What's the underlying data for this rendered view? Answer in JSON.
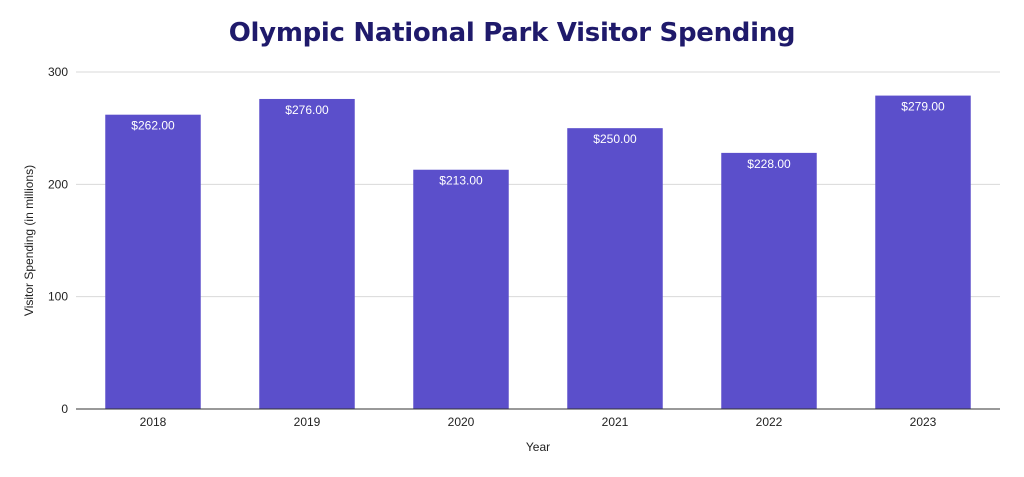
{
  "chart_data": {
    "type": "bar",
    "title": "Olympic National Park Visitor Spending",
    "xlabel": "Year",
    "ylabel": "Visitor Spending (in millions)",
    "categories": [
      "2018",
      "2019",
      "2020",
      "2021",
      "2022",
      "2023"
    ],
    "values": [
      262,
      276,
      213,
      250,
      228,
      279
    ],
    "data_labels": [
      "$262.00",
      "$276.00",
      "$213.00",
      "$250.00",
      "$228.00",
      "$279.00"
    ],
    "ylim": [
      0,
      300
    ],
    "yticks": [
      0,
      100,
      200,
      300
    ],
    "grid": true,
    "legend": "none",
    "colors": {
      "bar": "#5b4fcb",
      "title": "#1f1a6b",
      "grid": "#d9d9d9",
      "axis": "#333333"
    }
  }
}
